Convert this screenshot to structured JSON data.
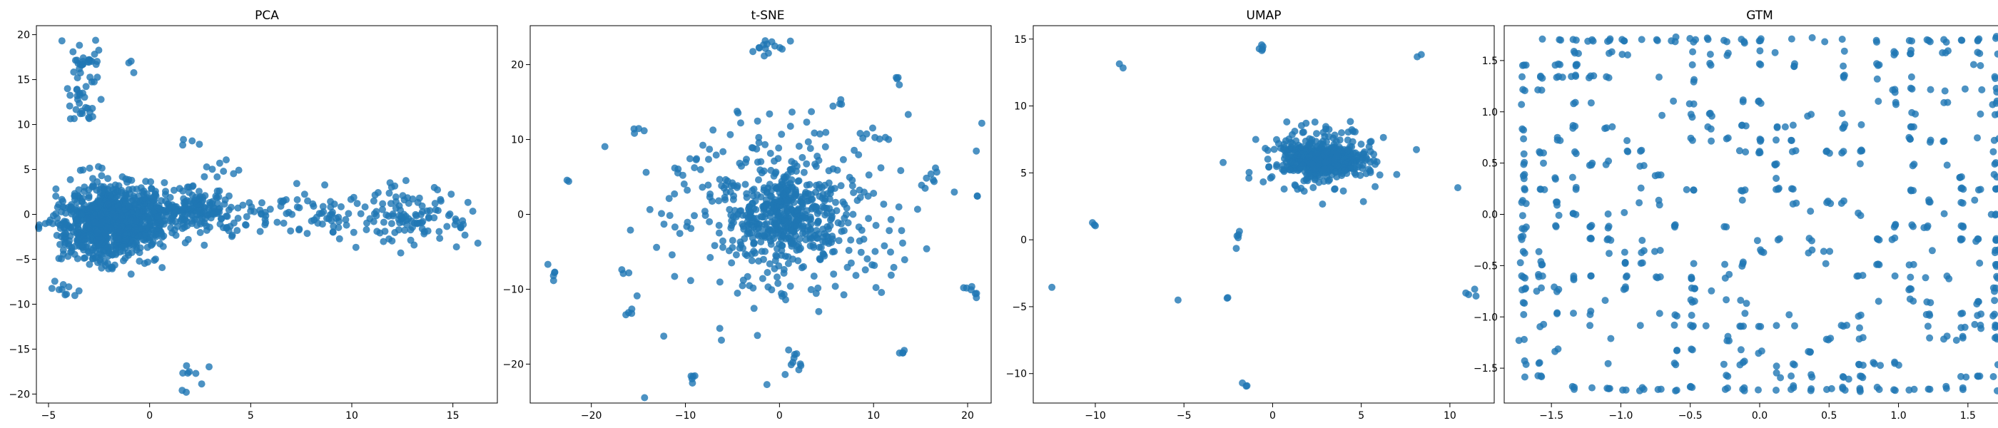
{
  "figure": {
    "background": "#ffffff",
    "point_color": "#1f77b4",
    "point_opacity": 0.8
  },
  "chart_data": [
    {
      "type": "scatter",
      "title": "PCA",
      "xlim": [
        -5.6,
        17.2
      ],
      "ylim": [
        -21.0,
        21.0
      ],
      "xticks": [
        -5,
        0,
        5,
        10,
        15
      ],
      "yticks": [
        -20,
        -15,
        -10,
        -5,
        0,
        5,
        10,
        15,
        20
      ],
      "clusters": [
        {
          "center": [
            -2.0,
            -1.0
          ],
          "spread": [
            1.3,
            2.0
          ],
          "count": 900
        },
        {
          "center": [
            1.5,
            0.3
          ],
          "spread": [
            1.6,
            1.3
          ],
          "count": 260
        },
        {
          "center": [
            -3.3,
            17.0
          ],
          "spread": [
            0.45,
            1.3
          ],
          "count": 30
        },
        {
          "center": [
            -3.3,
            12.6
          ],
          "spread": [
            0.45,
            1.2
          ],
          "count": 28
        },
        {
          "center": [
            -4.3,
            -8.0
          ],
          "spread": [
            0.5,
            0.5
          ],
          "count": 10
        },
        {
          "center": [
            -1.0,
            16.3
          ],
          "spread": [
            0.1,
            0.3
          ],
          "count": 3
        },
        {
          "center": [
            1.7,
            8.0
          ],
          "spread": [
            0.3,
            0.25
          ],
          "count": 4
        },
        {
          "center": [
            2.0,
            -18.0
          ],
          "spread": [
            0.45,
            1.4
          ],
          "count": 9
        },
        {
          "center": [
            3.5,
            5.6
          ],
          "spread": [
            0.6,
            0.6
          ],
          "count": 8
        },
        {
          "center": [
            5.5,
            0.2
          ],
          "spread": [
            0.7,
            1.0
          ],
          "count": 14
        },
        {
          "center": [
            8.5,
            0.3
          ],
          "spread": [
            1.1,
            1.3
          ],
          "count": 55
        },
        {
          "center": [
            12.5,
            0.0
          ],
          "spread": [
            1.1,
            1.6
          ],
          "count": 90
        },
        {
          "center": [
            15.0,
            -0.7
          ],
          "spread": [
            0.8,
            1.4
          ],
          "count": 22
        }
      ]
    },
    {
      "type": "scatter",
      "title": "t-SNE",
      "xlim": [
        -26.5,
        22.5
      ],
      "ylim": [
        -25.2,
        25.2
      ],
      "xticks": [
        -20,
        -10,
        0,
        10,
        20
      ],
      "yticks": [
        -20,
        -10,
        0,
        10,
        20
      ],
      "clusters": [
        {
          "center": [
            0.5,
            0.0
          ],
          "spread": [
            2.8,
            3.0
          ],
          "count": 360
        },
        {
          "center": [
            0.0,
            0.0
          ],
          "spread": [
            7.5,
            7.0
          ],
          "count": 320
        },
        {
          "center": [
            -1.2,
            22.5
          ],
          "spread": [
            1.0,
            0.5
          ],
          "count": 14
        },
        {
          "center": [
            1.5,
            -19.5
          ],
          "spread": [
            0.5,
            1.0
          ],
          "count": 9
        },
        {
          "center": [
            -9.2,
            -21.9
          ],
          "spread": [
            0.3,
            0.6
          ],
          "count": 5
        },
        {
          "center": [
            -24.3,
            -7.5
          ],
          "spread": [
            0.3,
            0.6
          ],
          "count": 5
        },
        {
          "center": [
            -16.0,
            -13.0
          ],
          "spread": [
            0.3,
            0.3
          ],
          "count": 4
        },
        {
          "center": [
            13.1,
            -18.5
          ],
          "spread": [
            0.2,
            0.4
          ],
          "count": 4
        },
        {
          "center": [
            20.3,
            -10.5
          ],
          "spread": [
            0.6,
            0.5
          ],
          "count": 7
        },
        {
          "center": [
            12.8,
            18.0
          ],
          "spread": [
            0.3,
            0.4
          ],
          "count": 4
        },
        {
          "center": [
            -22.5,
            4.5
          ],
          "spread": [
            0.1,
            0.1
          ],
          "count": 2
        },
        {
          "center": [
            21.0,
            2.6
          ],
          "spread": [
            0.1,
            0.1
          ],
          "count": 2
        },
        {
          "center": [
            -15.0,
            11.3
          ],
          "spread": [
            0.6,
            0.3
          ],
          "count": 4
        },
        {
          "center": [
            16.0,
            5.0
          ],
          "spread": [
            1.0,
            0.5
          ],
          "count": 6
        },
        {
          "center": [
            6.5,
            15.0
          ],
          "spread": [
            0.1,
            0.4
          ],
          "count": 3
        },
        {
          "center": [
            10.3,
            10.5
          ],
          "spread": [
            0.8,
            0.6
          ],
          "count": 6
        }
      ]
    },
    {
      "type": "scatter",
      "title": "UMAP",
      "xlim": [
        -13.5,
        12.5
      ],
      "ylim": [
        -12.2,
        16.0
      ],
      "xticks": [
        -10,
        -5,
        0,
        5,
        10
      ],
      "yticks": [
        -10,
        -5,
        0,
        5,
        10,
        15
      ],
      "clusters": [
        {
          "center": [
            2.8,
            6.0
          ],
          "spread": [
            1.0,
            0.55
          ],
          "count": 500
        },
        {
          "center": [
            2.8,
            6.0
          ],
          "spread": [
            1.8,
            1.3
          ],
          "count": 160
        },
        {
          "center": [
            -0.6,
            14.1
          ],
          "spread": [
            0.12,
            0.3
          ],
          "count": 5
        },
        {
          "center": [
            -8.4,
            13.1
          ],
          "spread": [
            0.1,
            0.1
          ],
          "count": 2
        },
        {
          "center": [
            8.2,
            13.9
          ],
          "spread": [
            0.1,
            0.15
          ],
          "count": 2
        },
        {
          "center": [
            -10.0,
            1.1
          ],
          "spread": [
            0.1,
            0.15
          ],
          "count": 3
        },
        {
          "center": [
            -12.4,
            -3.6
          ],
          "spread": [
            0.05,
            0.05
          ],
          "count": 1
        },
        {
          "center": [
            -5.4,
            -4.5
          ],
          "spread": [
            0.05,
            0.05
          ],
          "count": 1
        },
        {
          "center": [
            -2.5,
            -4.3
          ],
          "spread": [
            0.05,
            0.05
          ],
          "count": 2
        },
        {
          "center": [
            -1.8,
            -0.3
          ],
          "spread": [
            0.25,
            0.4
          ],
          "count": 5
        },
        {
          "center": [
            -1.5,
            -10.9
          ],
          "spread": [
            0.15,
            0.1
          ],
          "count": 3
        },
        {
          "center": [
            11.0,
            -4.0
          ],
          "spread": [
            0.25,
            0.2
          ],
          "count": 4
        },
        {
          "center": [
            10.3,
            3.9
          ],
          "spread": [
            0.05,
            0.05
          ],
          "count": 1
        },
        {
          "center": [
            -2.8,
            5.8
          ],
          "spread": [
            0.05,
            0.05
          ],
          "count": 1
        }
      ]
    },
    {
      "type": "scatter",
      "title": "GTM",
      "xlim": [
        -1.84,
        1.84
      ],
      "ylim": [
        -1.84,
        1.84
      ],
      "xticks": [
        -1.5,
        -1.0,
        -0.5,
        0.0,
        0.5,
        1.0,
        1.5
      ],
      "yticks": [
        -1.5,
        -1.0,
        -0.5,
        0.0,
        0.5,
        1.0,
        1.5
      ],
      "grid_layout": {
        "min": -1.7,
        "max": 1.7,
        "nodes": 29,
        "fill_probability": 0.34,
        "edge_boost": 0.5
      }
    }
  ]
}
